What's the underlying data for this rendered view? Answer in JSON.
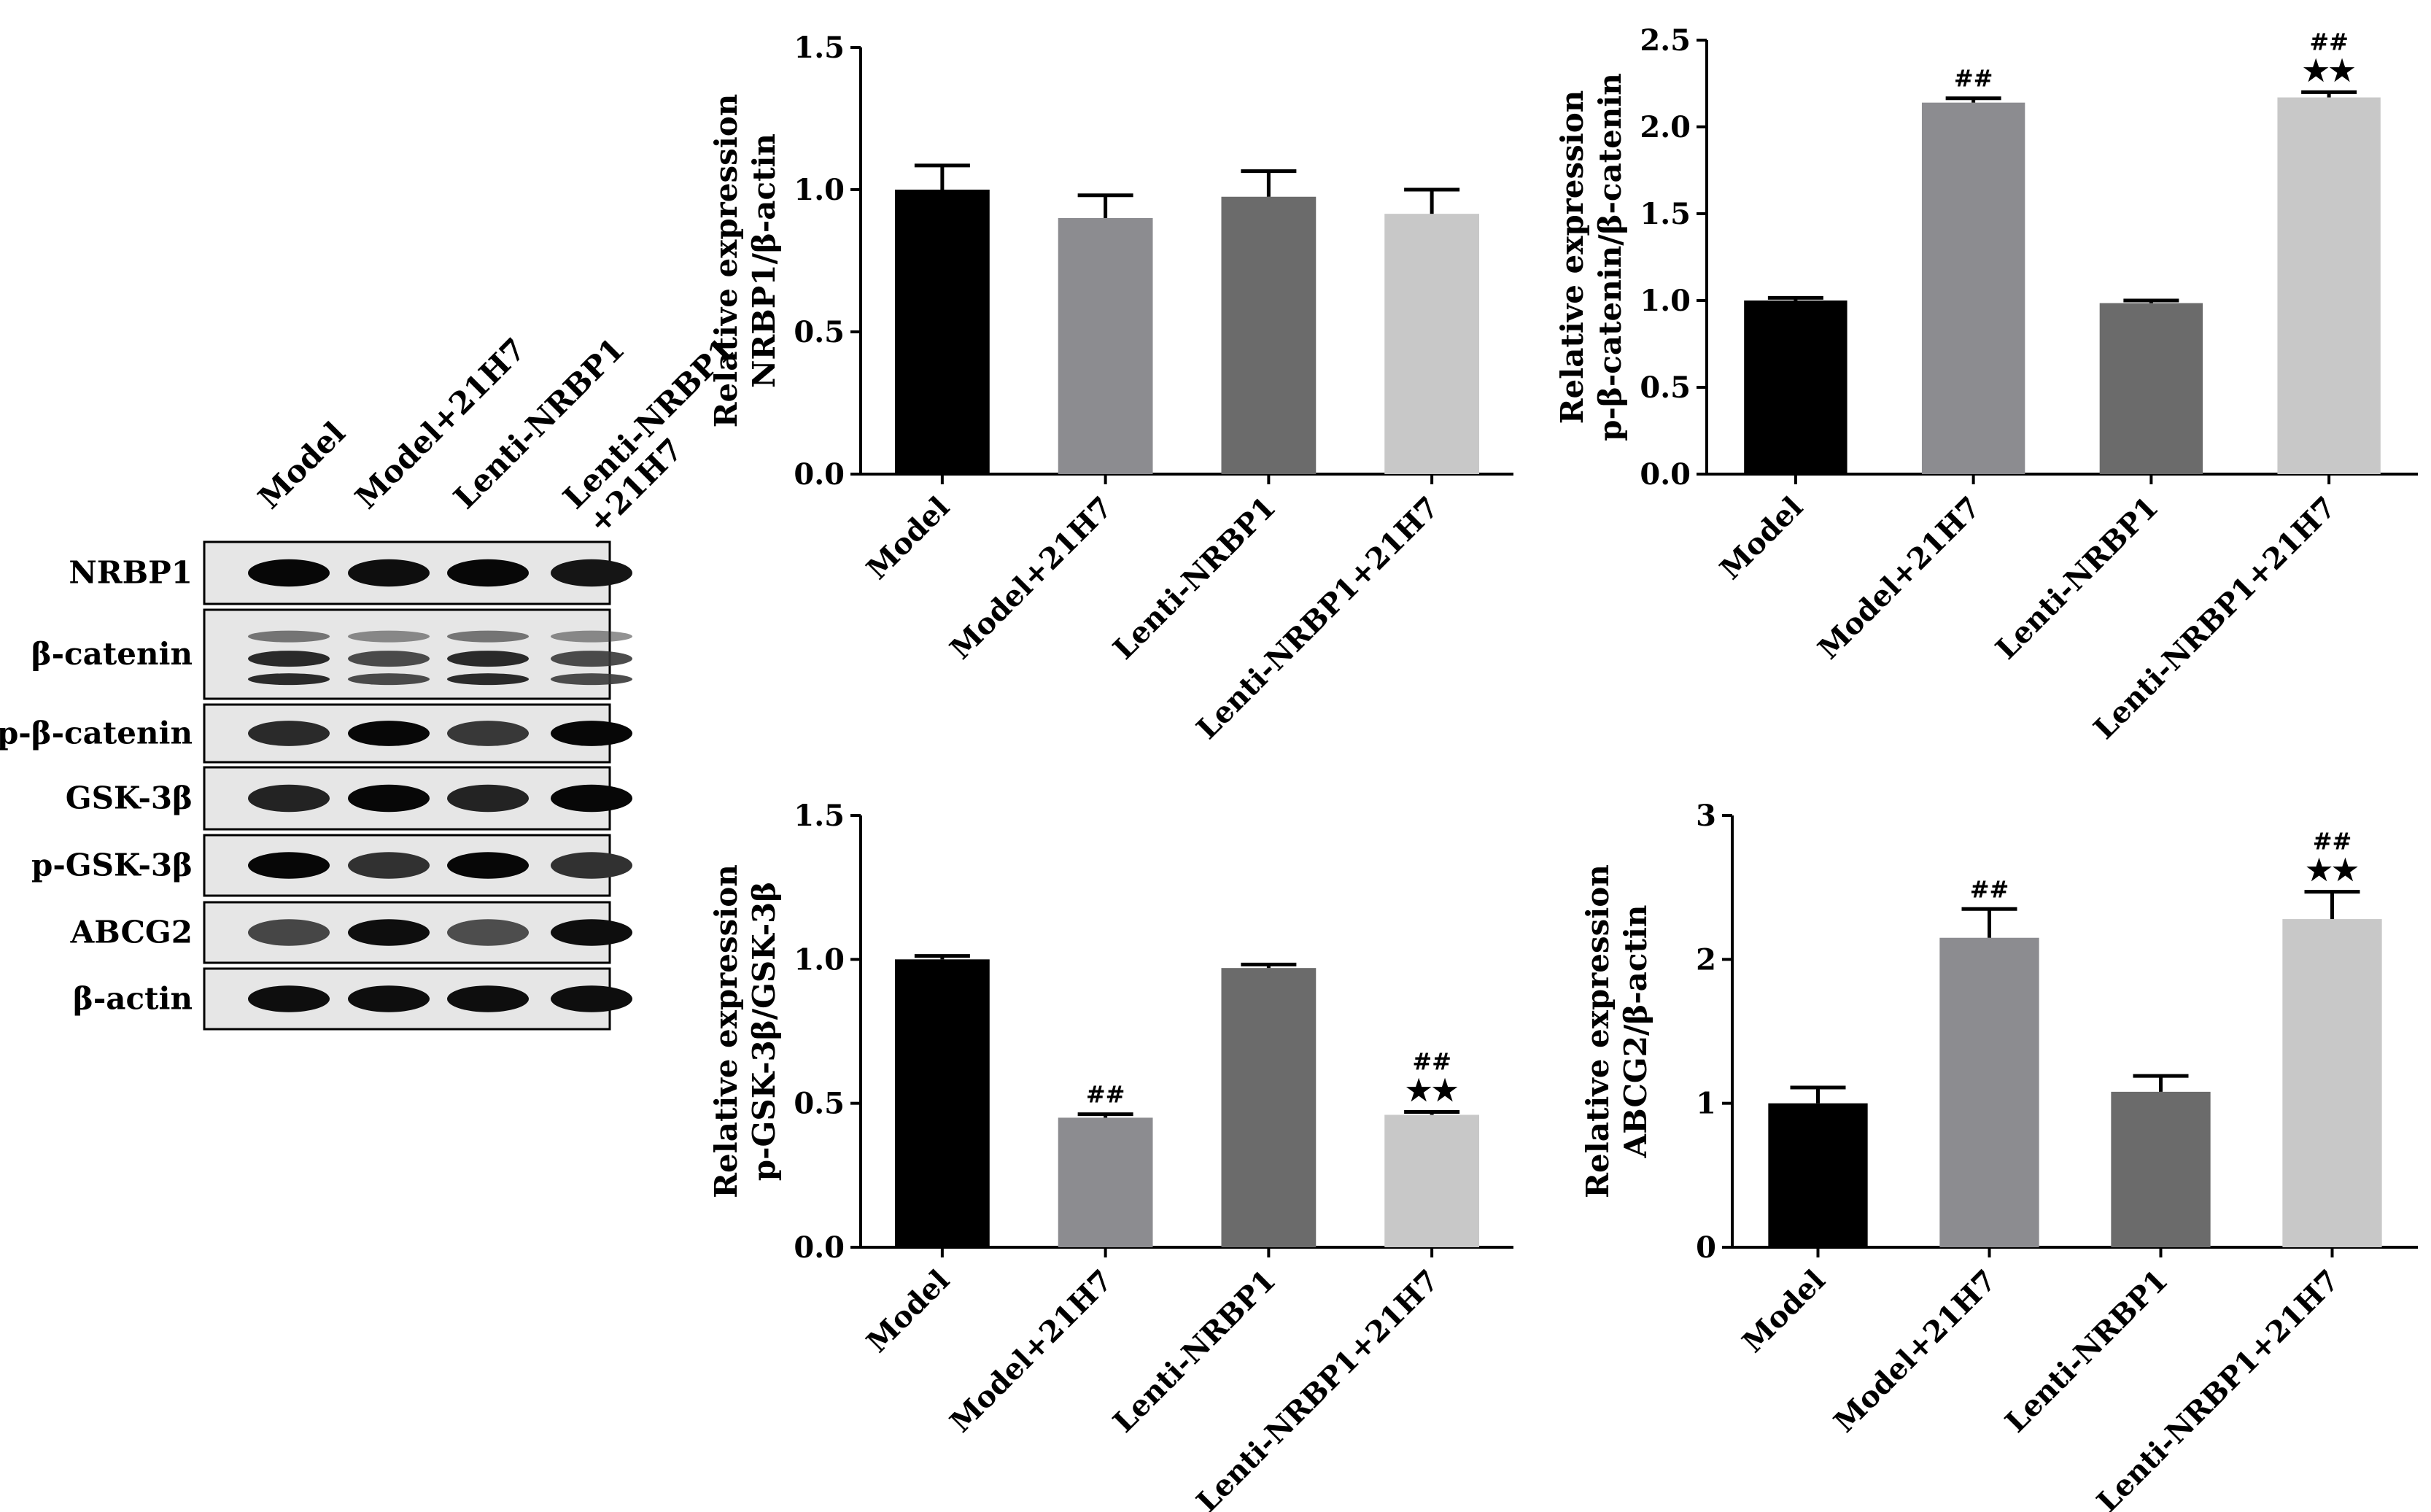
{
  "western_blot": {
    "lanes": [
      "Model",
      "Model+21H7",
      "Lenti-NRBP1",
      "Lenti-NRBP1\n+21H7"
    ],
    "lane_lines": [
      [
        "Model"
      ],
      [
        "Model+21H7"
      ],
      [
        "Lenti-NRBP1"
      ],
      [
        "Lenti-NRBP1",
        "+21H7"
      ]
    ],
    "bands": [
      "NRBP1",
      "β-catenin",
      "p-β-catenin",
      "GSK-3β",
      "p-GSK-3β",
      "ABCG2",
      "β-actin"
    ],
    "band_intensity": [
      [
        0.95,
        0.9,
        0.95,
        0.85
      ],
      [
        0.85,
        0.6,
        0.85,
        0.6
      ],
      [
        0.7,
        0.95,
        0.6,
        0.95
      ],
      [
        0.75,
        0.95,
        0.75,
        0.95
      ],
      [
        0.95,
        0.65,
        0.95,
        0.65
      ],
      [
        0.5,
        0.9,
        0.45,
        0.9
      ],
      [
        0.9,
        0.9,
        0.9,
        0.9
      ]
    ]
  },
  "colors": {
    "Model": "#000000",
    "Model+21H7": "#8c8c90",
    "Lenti-NRBP1": "#6b6b6b",
    "Lenti-NRBP1+21H7": "#c8c8c8"
  },
  "chart_data": [
    {
      "type": "bar",
      "categories": [
        "Model",
        "Model+21H7",
        "Lenti-NRBP1",
        "Lenti-NRBP1+21H7"
      ],
      "values": [
        1.0,
        0.9,
        0.975,
        0.915
      ],
      "errors": [
        0.085,
        0.08,
        0.09,
        0.085
      ],
      "ylabel": [
        "Relative expression",
        "NRBP1/β-actin"
      ],
      "ylim": [
        0,
        1.5
      ],
      "yticks": [
        "0.0",
        "0.5",
        "1.0",
        "1.5"
      ],
      "annotations": [
        "",
        "",
        "",
        ""
      ]
    },
    {
      "type": "bar",
      "categories": [
        "Model",
        "Model+21H7",
        "Lenti-NRBP1",
        "Lenti-NRBP1+21H7"
      ],
      "values": [
        1.0,
        2.14,
        0.985,
        2.17
      ],
      "errors": [
        0.015,
        0.025,
        0.015,
        0.03
      ],
      "ylabel": [
        "Relative expression",
        "p-β-catenin/β-catenin"
      ],
      "ylim": [
        0,
        2.5
      ],
      "yticks": [
        "0.0",
        "0.5",
        "1.0",
        "1.5",
        "2.0",
        "2.5"
      ],
      "annotations": [
        "",
        "##",
        "",
        "##\n★★"
      ]
    },
    {
      "type": "bar",
      "categories": [
        "Model",
        "Model+21H7",
        "Lenti-NRBP1",
        "Lenti-NRBP1+21H7"
      ],
      "values": [
        1.0,
        0.45,
        0.97,
        0.46
      ],
      "errors": [
        0.012,
        0.012,
        0.012,
        0.01
      ],
      "ylabel": [
        "Relative expression",
        "p-GSK-3β/GSK-3β"
      ],
      "ylim": [
        0,
        1.5
      ],
      "yticks": [
        "0.0",
        "0.5",
        "1.0",
        "1.5"
      ],
      "annotations": [
        "",
        "##",
        "",
        "##\n★★"
      ]
    },
    {
      "type": "bar",
      "categories": [
        "Model",
        "Model+21H7",
        "Lenti-NRBP1",
        "Lenti-NRBP1+21H7"
      ],
      "values": [
        1.0,
        2.15,
        1.08,
        2.28
      ],
      "errors": [
        0.11,
        0.2,
        0.11,
        0.19
      ],
      "ylabel": [
        "Relative expression",
        "ABCG2/β-actin"
      ],
      "ylim": [
        0,
        3
      ],
      "yticks": [
        "0",
        "1",
        "2",
        "3"
      ],
      "annotations": [
        "",
        "##",
        "",
        "##\n★★"
      ]
    }
  ]
}
